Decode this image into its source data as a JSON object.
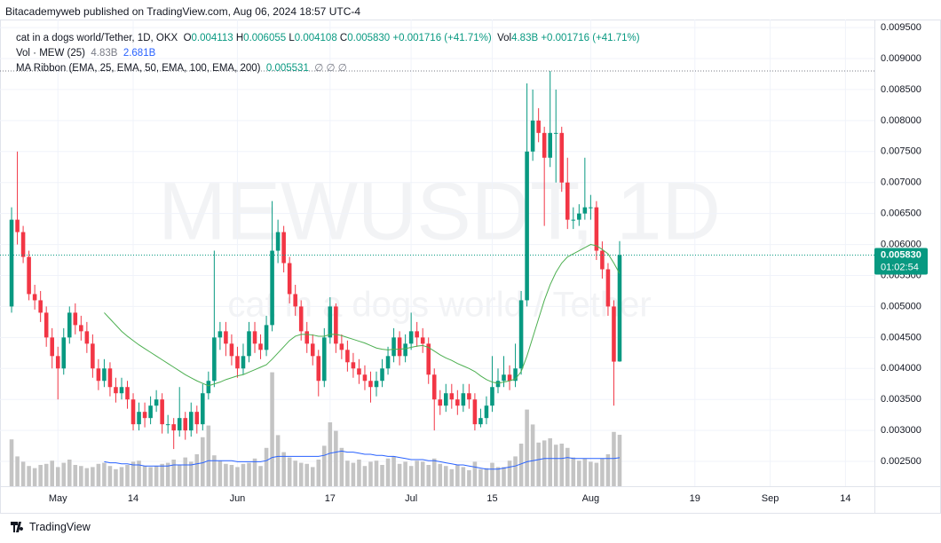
{
  "header": {
    "publisher": "Bitacademyweb published on TradingView.com, Aug 06, 2024 18:57 UTC-4"
  },
  "footer": {
    "brand": "TradingView"
  },
  "chart_data": {
    "type": "candlestick",
    "symbol": "cat in a dogs world/Tether, 1D, OKX",
    "watermark": "MEWUSDT, 1D",
    "watermark_sub": "cat in a dogs world / Tether",
    "legend": {
      "open": "O",
      "high": "H",
      "low": "L",
      "close": "C",
      "change": "+0.001716",
      "change_pct": "(+41.71%)",
      "volume": "Vol"
    },
    "last_price_label": "0.005830",
    "countdown": "01:02:54",
    "up_color": "#089981",
    "down_color": "#f23645",
    "grid": true,
    "x": [
      "2024-04-23",
      "2024-04-24",
      "2024-04-25",
      "2024-04-26",
      "2024-04-27",
      "2024-04-28",
      "2024-04-29",
      "2024-04-30",
      "2024-05-01",
      "2024-05-02",
      "2024-05-03",
      "2024-05-04",
      "2024-05-05",
      "2024-05-06",
      "2024-05-07",
      "2024-05-08",
      "2024-05-09",
      "2024-05-10",
      "2024-05-11",
      "2024-05-12",
      "2024-05-13",
      "2024-05-14",
      "2024-05-15",
      "2024-05-16",
      "2024-05-17",
      "2024-05-18",
      "2024-05-19",
      "2024-05-20",
      "2024-05-21",
      "2024-05-22",
      "2024-05-23",
      "2024-05-24",
      "2024-05-25",
      "2024-05-26",
      "2024-05-27",
      "2024-05-28",
      "2024-05-29",
      "2024-05-30",
      "2024-05-31",
      "2024-06-01",
      "2024-06-02",
      "2024-06-03",
      "2024-06-04",
      "2024-06-05",
      "2024-06-06",
      "2024-06-07",
      "2024-06-08",
      "2024-06-09",
      "2024-06-10",
      "2024-06-11",
      "2024-06-12",
      "2024-06-13",
      "2024-06-14",
      "2024-06-15",
      "2024-06-16",
      "2024-06-17",
      "2024-06-18",
      "2024-06-19",
      "2024-06-20",
      "2024-06-21",
      "2024-06-22",
      "2024-06-23",
      "2024-06-24",
      "2024-06-25",
      "2024-06-26",
      "2024-06-27",
      "2024-06-28",
      "2024-06-29",
      "2024-06-30",
      "2024-07-01",
      "2024-07-02",
      "2024-07-03",
      "2024-07-04",
      "2024-07-05",
      "2024-07-06",
      "2024-07-07",
      "2024-07-08",
      "2024-07-09",
      "2024-07-10",
      "2024-07-11",
      "2024-07-12",
      "2024-07-13",
      "2024-07-14",
      "2024-07-15",
      "2024-07-16",
      "2024-07-17",
      "2024-07-18",
      "2024-07-19",
      "2024-07-20",
      "2024-07-21",
      "2024-07-22",
      "2024-07-23",
      "2024-07-24",
      "2024-07-25",
      "2024-07-26",
      "2024-07-27",
      "2024-07-28",
      "2024-07-29",
      "2024-07-30",
      "2024-07-31",
      "2024-08-01",
      "2024-08-02",
      "2024-08-03",
      "2024-08-04",
      "2024-08-05",
      "2024-08-06"
    ],
    "open": [
      0.005,
      0.0064,
      0.0062,
      0.0058,
      0.0052,
      0.0051,
      0.0049,
      0.0045,
      0.0042,
      0.004,
      0.0045,
      0.0049,
      0.0047,
      0.0046,
      0.0044,
      0.004,
      0.0038,
      0.004,
      0.0037,
      0.0036,
      0.0037,
      0.0035,
      0.0031,
      0.0033,
      0.0032,
      0.0034,
      0.0035,
      0.0031,
      0.0031,
      0.003,
      0.0032,
      0.003,
      0.0033,
      0.0031,
      0.0036,
      0.0038,
      0.0045,
      0.0046,
      0.0044,
      0.0042,
      0.004,
      0.0042,
      0.0046,
      0.0044,
      0.0043,
      0.0047,
      0.0059,
      0.0062,
      0.0057,
      0.0052,
      0.005,
      0.0046,
      0.0044,
      0.0042,
      0.0038,
      0.0045,
      0.005,
      0.0044,
      0.0043,
      0.0041,
      0.004,
      0.0039,
      0.0038,
      0.0037,
      0.0038,
      0.004,
      0.0042,
      0.0045,
      0.0042,
      0.0044,
      0.0046,
      0.0045,
      0.0044,
      0.0039,
      0.0035,
      0.0034,
      0.0036,
      0.0035,
      0.0034,
      0.0036,
      0.0035,
      0.0031,
      0.0032,
      0.0034,
      0.0037,
      0.0038,
      0.0039,
      0.0038,
      0.004,
      0.0051,
      0.0075,
      0.008,
      0.0078,
      0.0074,
      0.0078,
      0.0078,
      0.007,
      0.0064,
      0.0064,
      0.0065,
      0.0066,
      0.0066,
      0.0059,
      0.0056,
      0.005,
      0.004113
    ],
    "high": [
      0.0066,
      0.0075,
      0.0063,
      0.0059,
      0.00535,
      0.00525,
      0.005,
      0.00465,
      0.00435,
      0.00465,
      0.005,
      0.00505,
      0.00485,
      0.00475,
      0.00455,
      0.00415,
      0.00415,
      0.0041,
      0.00385,
      0.00385,
      0.0038,
      0.0036,
      0.00345,
      0.00345,
      0.00355,
      0.00365,
      0.0036,
      0.00325,
      0.0032,
      0.0037,
      0.0033,
      0.00345,
      0.0034,
      0.00375,
      0.00395,
      0.0059,
      0.00475,
      0.00475,
      0.00455,
      0.00435,
      0.0044,
      0.00475,
      0.00475,
      0.00455,
      0.00485,
      0.0067,
      0.0064,
      0.0063,
      0.0058,
      0.00535,
      0.0051,
      0.00475,
      0.00455,
      0.0043,
      0.00465,
      0.00515,
      0.00505,
      0.00455,
      0.00445,
      0.00425,
      0.00415,
      0.00405,
      0.00395,
      0.00395,
      0.00415,
      0.00435,
      0.00465,
      0.0046,
      0.00455,
      0.0049,
      0.00475,
      0.00465,
      0.0045,
      0.004,
      0.00365,
      0.00375,
      0.00375,
      0.00365,
      0.00375,
      0.00375,
      0.0036,
      0.00335,
      0.00355,
      0.0042,
      0.004,
      0.0042,
      0.00405,
      0.0044,
      0.00525,
      0.0086,
      0.0085,
      0.0082,
      0.0079,
      0.0088,
      0.0085,
      0.0079,
      0.0074,
      0.0066,
      0.00665,
      0.0074,
      0.0068,
      0.0067,
      0.00605,
      0.0057,
      0.0051,
      0.006055
    ],
    "low": [
      0.0049,
      0.006,
      0.0057,
      0.0051,
      0.00495,
      0.00475,
      0.00435,
      0.004,
      0.0035,
      0.0039,
      0.0044,
      0.00455,
      0.00445,
      0.00425,
      0.00385,
      0.00365,
      0.0037,
      0.00355,
      0.00345,
      0.0035,
      0.00335,
      0.003,
      0.003,
      0.00305,
      0.0031,
      0.0033,
      0.00295,
      0.00295,
      0.0027,
      0.0029,
      0.00285,
      0.0029,
      0.00295,
      0.003,
      0.0035,
      0.0037,
      0.0043,
      0.0042,
      0.00405,
      0.00385,
      0.0039,
      0.0041,
      0.00425,
      0.00415,
      0.0042,
      0.0046,
      0.0057,
      0.00555,
      0.00505,
      0.00485,
      0.00445,
      0.00425,
      0.00405,
      0.00355,
      0.0037,
      0.0044,
      0.00425,
      0.00415,
      0.00395,
      0.00385,
      0.00375,
      0.00365,
      0.00345,
      0.00355,
      0.0037,
      0.0039,
      0.0041,
      0.00405,
      0.0041,
      0.0043,
      0.00435,
      0.00425,
      0.00375,
      0.003,
      0.00325,
      0.0033,
      0.00335,
      0.00325,
      0.0033,
      0.00335,
      0.003,
      0.00305,
      0.0031,
      0.0033,
      0.0036,
      0.0037,
      0.00365,
      0.0037,
      0.0039,
      0.005,
      0.00735,
      0.00765,
      0.0063,
      0.00725,
      0.007,
      0.00685,
      0.00625,
      0.00625,
      0.0063,
      0.0064,
      0.0064,
      0.00575,
      0.00545,
      0.00485,
      0.0034,
      0.004108
    ],
    "close": [
      0.0064,
      0.0062,
      0.0058,
      0.0052,
      0.0051,
      0.0049,
      0.0045,
      0.0042,
      0.004,
      0.0045,
      0.0049,
      0.0047,
      0.0046,
      0.0044,
      0.004,
      0.0038,
      0.004,
      0.0037,
      0.0036,
      0.0037,
      0.0035,
      0.0031,
      0.0033,
      0.0032,
      0.0034,
      0.0035,
      0.0031,
      0.0031,
      0.003,
      0.0032,
      0.003,
      0.0033,
      0.0031,
      0.0036,
      0.0038,
      0.0045,
      0.0046,
      0.0044,
      0.0042,
      0.004,
      0.0042,
      0.0046,
      0.0044,
      0.0043,
      0.0047,
      0.0059,
      0.0062,
      0.0057,
      0.0052,
      0.005,
      0.0046,
      0.0044,
      0.0042,
      0.0038,
      0.0045,
      0.005,
      0.0044,
      0.0043,
      0.0041,
      0.004,
      0.0039,
      0.0038,
      0.0037,
      0.0038,
      0.004,
      0.0042,
      0.0045,
      0.0042,
      0.0044,
      0.0046,
      0.0045,
      0.0044,
      0.0039,
      0.0035,
      0.0034,
      0.0036,
      0.0035,
      0.0034,
      0.0036,
      0.0035,
      0.0031,
      0.0032,
      0.0034,
      0.0037,
      0.0038,
      0.0039,
      0.0038,
      0.004,
      0.0051,
      0.0075,
      0.008,
      0.0078,
      0.0074,
      0.0078,
      0.0078,
      0.007,
      0.0064,
      0.0064,
      0.0065,
      0.0066,
      0.0066,
      0.0059,
      0.0056,
      0.005,
      0.00411,
      0.00583
    ],
    "volume": {
      "name": "Vol · MEW (25)",
      "color": "#c4c4c4",
      "ma_color": "#2962ff",
      "value_label": "4.83B",
      "ma_label": "2.681B",
      "values": [
        4.4,
        2.8,
        2.3,
        1.9,
        1.7,
        2.0,
        2.1,
        2.4,
        1.8,
        2.2,
        2.5,
        2.0,
        1.9,
        1.7,
        1.8,
        2.1,
        2.2,
        1.9,
        1.6,
        1.8,
        2.0,
        2.3,
        2.4,
        1.9,
        1.8,
        1.9,
        2.1,
        2.2,
        2.5,
        2.0,
        2.7,
        2.3,
        3.0,
        4.6,
        5.7,
        2.9,
        2.4,
        2.1,
        2.0,
        1.8,
        2.1,
        2.2,
        2.6,
        1.9,
        3.6,
        10.7,
        4.8,
        3.2,
        2.7,
        2.4,
        2.2,
        2.1,
        1.8,
        2.5,
        3.8,
        6.0,
        5.2,
        3.6,
        2.4,
        2.2,
        2.5,
        1.9,
        2.3,
        2.4,
        2.0,
        2.6,
        2.8,
        2.1,
        2.3,
        1.9,
        2.4,
        2.3,
        2.0,
        2.6,
        2.1,
        1.9,
        1.6,
        2.0,
        1.8,
        1.5,
        2.3,
        1.6,
        1.7,
        2.2,
        1.8,
        1.8,
        2.4,
        2.8,
        4.0,
        7.2,
        5.8,
        4.1,
        4.3,
        4.5,
        3.9,
        4.0,
        3.6,
        2.7,
        2.4,
        2.6,
        2.3,
        2.2,
        2.6,
        3.0,
        5.1,
        4.83
      ],
      "ma": [
        null,
        null,
        null,
        null,
        null,
        null,
        null,
        null,
        null,
        null,
        null,
        null,
        null,
        null,
        null,
        null,
        2.3,
        2.2,
        2.2,
        2.1,
        2.1,
        2.0,
        2.0,
        1.9,
        1.9,
        1.9,
        1.9,
        1.9,
        2.0,
        2.0,
        2.0,
        2.0,
        2.1,
        2.2,
        2.4,
        2.4,
        2.4,
        2.4,
        2.4,
        2.3,
        2.3,
        2.3,
        2.3,
        2.3,
        2.4,
        2.7,
        2.8,
        2.8,
        2.8,
        2.8,
        2.8,
        2.8,
        2.8,
        2.8,
        2.9,
        3.1,
        3.2,
        3.3,
        3.2,
        3.2,
        3.1,
        3.0,
        3.0,
        2.9,
        2.9,
        2.8,
        2.8,
        2.7,
        2.6,
        2.5,
        2.5,
        2.5,
        2.4,
        2.4,
        2.3,
        2.2,
        2.1,
        2.0,
        2.0,
        1.9,
        1.8,
        1.7,
        1.6,
        1.6,
        1.6,
        1.7,
        1.8,
        1.9,
        2.1,
        2.3,
        2.4,
        2.5,
        2.6,
        2.6,
        2.6,
        2.6,
        2.7,
        2.6,
        2.6,
        2.6,
        2.6,
        2.6,
        2.6,
        2.6,
        2.6,
        2.681
      ]
    },
    "ma_ribbon": {
      "name": "MA Ribbon (EMA, 25, EMA, 50, EMA, 100, EMA, 200)",
      "color": "#4caf50",
      "empty_labels": [
        "∅",
        "∅",
        "∅"
      ],
      "values": [
        null,
        null,
        null,
        null,
        null,
        null,
        null,
        null,
        null,
        null,
        null,
        null,
        null,
        null,
        null,
        null,
        0.0049,
        0.0048,
        0.0047,
        0.0046,
        0.00452,
        0.00445,
        0.00438,
        0.00432,
        0.00426,
        0.0042,
        0.00414,
        0.00408,
        0.00402,
        0.00396,
        0.0039,
        0.00385,
        0.0038,
        0.00376,
        0.00372,
        0.00375,
        0.00378,
        0.00382,
        0.00385,
        0.00388,
        0.0039,
        0.00394,
        0.00398,
        0.00402,
        0.00406,
        0.00415,
        0.00425,
        0.00435,
        0.00445,
        0.00452,
        0.00455,
        0.00455,
        0.00454,
        0.00452,
        0.00452,
        0.00455,
        0.00455,
        0.00453,
        0.0045,
        0.00447,
        0.00444,
        0.00441,
        0.00437,
        0.00433,
        0.00431,
        0.0043,
        0.00431,
        0.00431,
        0.00432,
        0.00434,
        0.00436,
        0.00437,
        0.00434,
        0.00428,
        0.00422,
        0.00417,
        0.00413,
        0.00408,
        0.00404,
        0.004,
        0.00395,
        0.00388,
        0.00382,
        0.00378,
        0.00376,
        0.00378,
        0.0038,
        0.00383,
        0.00395,
        0.0042,
        0.0045,
        0.0048,
        0.0051,
        0.00535,
        0.00555,
        0.0057,
        0.0058,
        0.00585,
        0.0059,
        0.00595,
        0.006,
        0.00598,
        0.00592,
        0.00585,
        0.0057,
        0.005531
      ]
    },
    "xlim": [
      "2024-04-21",
      "2024-09-19"
    ],
    "xticks": [
      {
        "value": "2024-05-01",
        "label": "May"
      },
      {
        "value": "2024-05-14",
        "label": "14"
      },
      {
        "value": "2024-06-01",
        "label": "Jun"
      },
      {
        "value": "2024-06-17",
        "label": "17"
      },
      {
        "value": "2024-07-01",
        "label": "Jul"
      },
      {
        "value": "2024-07-15",
        "label": "15"
      },
      {
        "value": "2024-08-01",
        "label": "Aug"
      },
      {
        "value": "2024-08-19",
        "label": "19"
      },
      {
        "value": "2024-09-01",
        "label": "Sep"
      },
      {
        "value": "2024-09-14",
        "label": "14"
      }
    ],
    "ylim": [
      0.0021,
      0.00963
    ],
    "yticks": [
      {
        "value": 0.0025,
        "label": "0.002500"
      },
      {
        "value": 0.003,
        "label": "0.003000"
      },
      {
        "value": 0.0035,
        "label": "0.003500"
      },
      {
        "value": 0.004,
        "label": "0.004000"
      },
      {
        "value": 0.0045,
        "label": "0.004500"
      },
      {
        "value": 0.005,
        "label": "0.005000"
      },
      {
        "value": 0.0055,
        "label": "0.005500"
      },
      {
        "value": 0.006,
        "label": "0.006000"
      },
      {
        "value": 0.0065,
        "label": "0.006500"
      },
      {
        "value": 0.007,
        "label": "0.007000"
      },
      {
        "value": 0.0075,
        "label": "0.007500"
      },
      {
        "value": 0.008,
        "label": "0.008000"
      },
      {
        "value": 0.0085,
        "label": "0.008500"
      },
      {
        "value": 0.009,
        "label": "0.009000"
      },
      {
        "value": 0.0095,
        "label": "0.009500"
      }
    ]
  }
}
